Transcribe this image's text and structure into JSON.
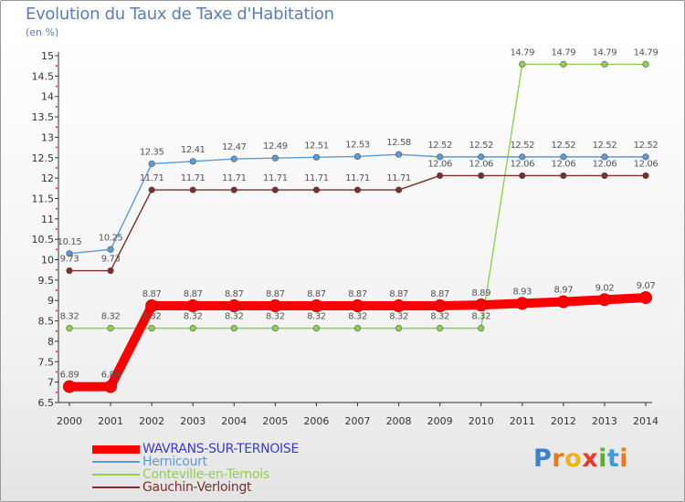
{
  "title": "Evolution du Taux de Taxe d'Habitation",
  "unit_label": "(en %)",
  "logo": {
    "letters": [
      "P",
      "r",
      "o",
      "x",
      "i",
      "t",
      "i"
    ],
    "colors": [
      "#3a7fd0",
      "#e87a1e",
      "#f0b21a",
      "#e83a2a",
      "#5bb030",
      "#3a9fd8",
      "#e87a1e"
    ]
  },
  "chart_data": {
    "type": "line",
    "title": "Evolution du Taux de Taxe d'Habitation",
    "ylabel": "(en %)",
    "xlabel": "",
    "x": [
      "2000",
      "2001",
      "2002",
      "2003",
      "2004",
      "2005",
      "2006",
      "2007",
      "2008",
      "2009",
      "2010",
      "2011",
      "2012",
      "2013",
      "2014"
    ],
    "ylim": [
      6.5,
      15
    ],
    "yticks": [
      "6.5",
      "7",
      "7.5",
      "8",
      "8.5",
      "9",
      "9.5",
      "10",
      "10.5",
      "11",
      "11.5",
      "12",
      "12.5",
      "13",
      "13.5",
      "14",
      "14.5",
      "15"
    ],
    "series": [
      {
        "name": "WAVRANS-SUR-TERNOISE",
        "color": "#ff0000",
        "values": [
          6.89,
          6.89,
          8.87,
          8.87,
          8.87,
          8.87,
          8.87,
          8.87,
          8.87,
          8.87,
          8.89,
          8.93,
          8.97,
          9.02,
          9.07
        ],
        "labels": [
          "6.89",
          "6.89",
          "8.87",
          "8.87",
          "8.87",
          "8.87",
          "8.87",
          "8.87",
          "8.87",
          "8.87",
          "8.89",
          "8.93",
          "8.97",
          "9.02",
          "9.07"
        ]
      },
      {
        "name": "Hernicourt",
        "color": "#5b9bd5",
        "values": [
          10.15,
          10.25,
          12.35,
          12.41,
          12.47,
          12.49,
          12.51,
          12.53,
          12.58,
          12.52,
          12.52,
          12.52,
          12.52,
          12.52,
          12.52
        ],
        "labels": [
          "10.15",
          "10.25",
          "12.35",
          "12.41",
          "12.47",
          "12.49",
          "12.51",
          "12.53",
          "12.58",
          "12.52",
          "12.52",
          "12.52",
          "12.52",
          "12.52",
          "12.52"
        ]
      },
      {
        "name": "Conteville-en-Ternois",
        "color": "#8fd14f",
        "values": [
          8.32,
          8.32,
          8.32,
          8.32,
          8.32,
          8.32,
          8.32,
          8.32,
          8.32,
          8.32,
          8.32,
          14.79,
          14.79,
          14.79,
          14.79
        ],
        "labels": [
          "8.32",
          "8.32",
          "8.32",
          "8.32",
          "8.32",
          "8.32",
          "8.32",
          "8.32",
          "8.32",
          "8.32",
          "8.32",
          "14.79",
          "14.79",
          "14.79",
          "14.79"
        ]
      },
      {
        "name": "Gauchin-Verloingt",
        "color": "#7a2e2e",
        "values": [
          9.73,
          9.73,
          11.71,
          11.71,
          11.71,
          11.71,
          11.71,
          11.71,
          11.71,
          12.06,
          12.06,
          12.06,
          12.06,
          12.06,
          12.06
        ],
        "labels": [
          "9.73",
          "9.73",
          "11.71",
          "11.71",
          "11.71",
          "11.71",
          "11.71",
          "11.71",
          "11.71",
          "12.06",
          "12.06",
          "12.06",
          "12.06",
          "12.06",
          "12.06"
        ]
      }
    ],
    "legend": {
      "position": "bottom-left",
      "entries": [
        "WAVRANS-SUR-TERNOISE",
        "Hernicourt",
        "Conteville-en-Ternois",
        "Gauchin-Verloingt"
      ],
      "colors": [
        "#3a3ad0",
        "#5b9bd5",
        "#8fd14f",
        "#7a2e2e"
      ]
    }
  }
}
